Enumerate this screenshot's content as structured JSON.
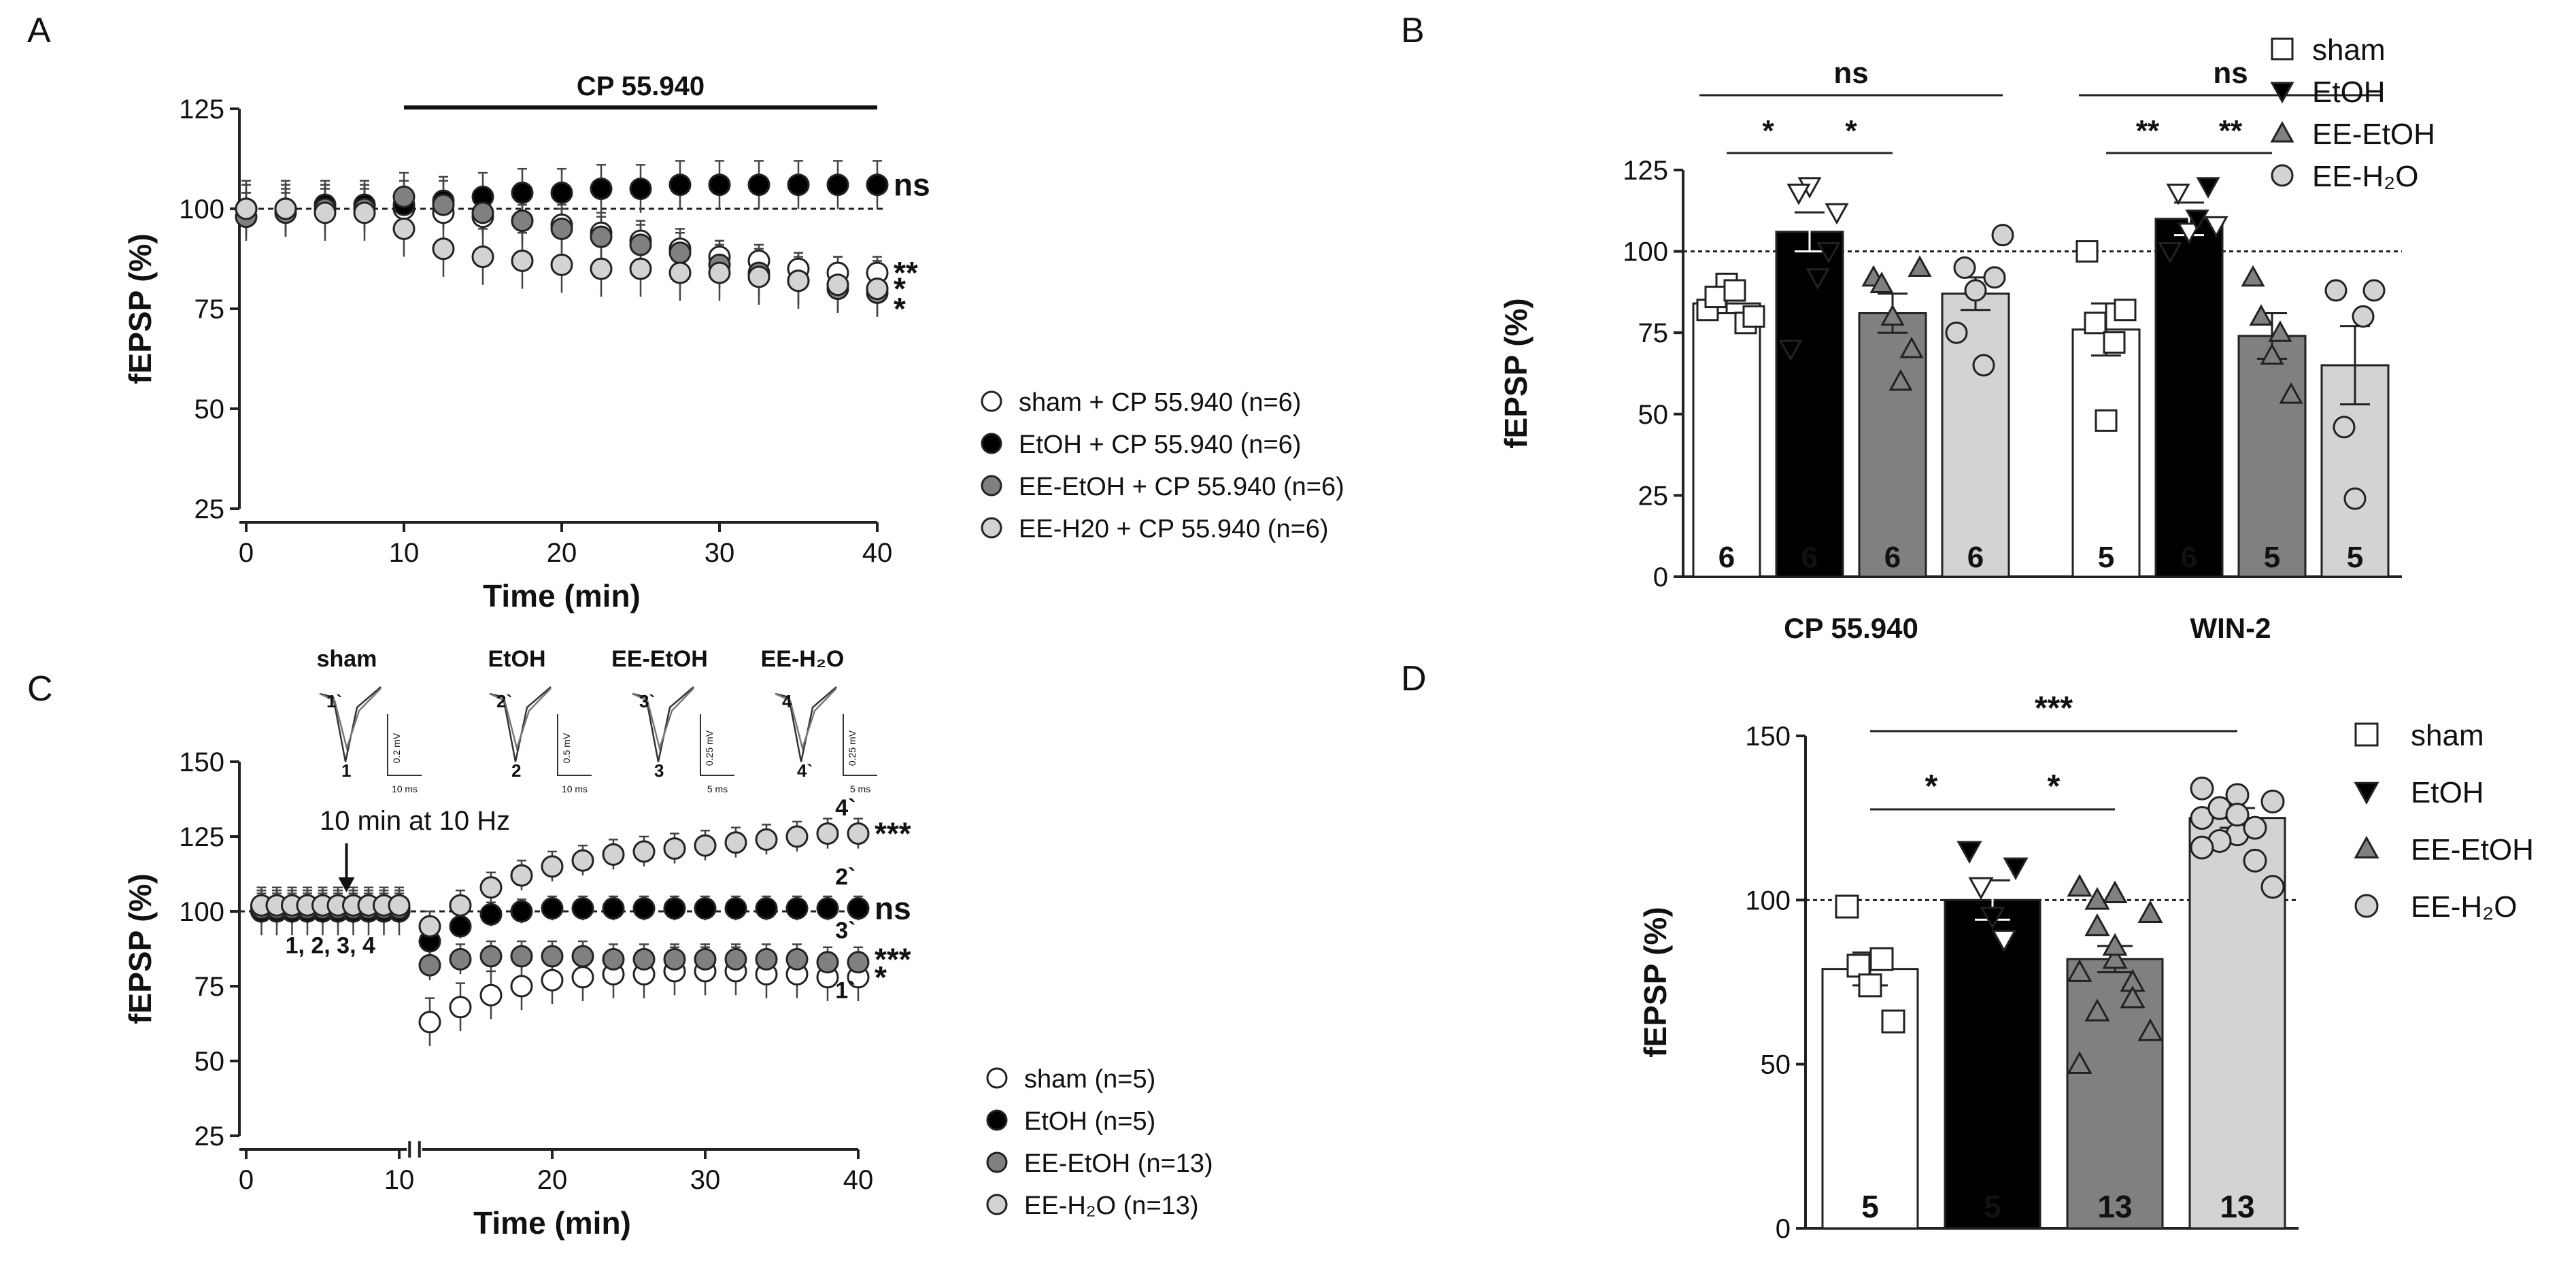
{
  "colors": {
    "sham": "#ffffff",
    "etoh": "#000000",
    "ee_etoh": "#808080",
    "ee_h2o": "#d3d3d3",
    "stroke": "#222222"
  },
  "chart_data": [
    {
      "panel": "A",
      "type": "line",
      "xlabel": "Time (min)",
      "ylabel": "fEPSP (%)",
      "xlim": [
        0,
        40
      ],
      "ylim": [
        25,
        125
      ],
      "xticks": [
        "0",
        "10",
        "20",
        "30",
        "40"
      ],
      "yticks": [
        "25",
        "50",
        "75",
        "100",
        "125"
      ],
      "drug_bar_label": "CP 55.940",
      "drug_bar_range": [
        10,
        40
      ],
      "series": [
        {
          "key": "sham",
          "name": "sham + CP 55.940 (n=6)",
          "x": [
            0,
            2.5,
            5,
            7.5,
            10,
            12.5,
            15,
            17.5,
            20,
            22.5,
            25,
            27.5,
            30,
            32.5,
            35,
            37.5,
            40
          ],
          "y": [
            100,
            100,
            101,
            101,
            100,
            99,
            98,
            97,
            96,
            94,
            92,
            90,
            88,
            87,
            85,
            84,
            84
          ],
          "err": 4
        },
        {
          "key": "etoh",
          "name": "EtOH + CP 55.940 (n=6)",
          "x": [
            0,
            2.5,
            5,
            7.5,
            10,
            12.5,
            15,
            17.5,
            20,
            22.5,
            25,
            27.5,
            30,
            32.5,
            35,
            37.5,
            40
          ],
          "y": [
            100,
            100,
            101,
            101,
            101,
            102,
            103,
            104,
            104,
            105,
            105,
            106,
            106,
            106,
            106,
            106,
            106
          ],
          "err": 6
        },
        {
          "key": "ee_etoh",
          "name": "EE-EtOH + CP 55.940 (n=6)",
          "x": [
            0,
            2.5,
            5,
            7.5,
            10,
            12.5,
            15,
            17.5,
            20,
            22.5,
            25,
            27.5,
            30,
            32.5,
            35,
            37.5,
            40
          ],
          "y": [
            98,
            99,
            100,
            100,
            103,
            101,
            99,
            97,
            95,
            93,
            91,
            89,
            86,
            84,
            82,
            80,
            79
          ],
          "err": 6
        },
        {
          "key": "ee_h2o",
          "name": "EE-H20 + CP 55.940 (n=6)",
          "x": [
            0,
            2.5,
            5,
            7.5,
            10,
            12.5,
            15,
            17.5,
            20,
            22.5,
            25,
            27.5,
            30,
            32.5,
            35,
            37.5,
            40
          ],
          "y": [
            100,
            100,
            99,
            99,
            95,
            90,
            88,
            87,
            86,
            85,
            85,
            84,
            84,
            83,
            82,
            81,
            80
          ],
          "err": 7
        }
      ],
      "significance": [
        {
          "label": "ns",
          "y": 106
        },
        {
          "label": "**",
          "y": 84
        },
        {
          "label": "*",
          "y": 80
        },
        {
          "label": "*",
          "y": 75
        }
      ]
    },
    {
      "panel": "B",
      "type": "bar",
      "ylabel": "fEPSP (%)",
      "ylim": [
        0,
        125
      ],
      "yticks": [
        "0",
        "25",
        "50",
        "75",
        "100",
        "125"
      ],
      "reference_line": 100,
      "groups": [
        "CP 55.940",
        "WIN-2"
      ],
      "series_names": [
        "sham",
        "EtOH",
        "EE-EtOH",
        "EE-H₂O"
      ],
      "values": [
        [
          84,
          106,
          81,
          87
        ],
        [
          76,
          110,
          74,
          65
        ]
      ],
      "sem": [
        [
          3,
          6,
          6,
          5
        ],
        [
          8,
          5,
          7,
          12
        ]
      ],
      "n": [
        [
          "6",
          "6",
          "6",
          "6"
        ],
        [
          "5",
          "6",
          "5",
          "5"
        ]
      ],
      "points": [
        [
          [
            82,
            90,
            78,
            86,
            88,
            80
          ],
          [
            70,
            120,
            100,
            118,
            92,
            112
          ],
          [
            92,
            80,
            70,
            90,
            60,
            95
          ],
          [
            75,
            88,
            92,
            95,
            65,
            105
          ]
        ],
        [
          [
            100,
            48,
            82,
            78,
            72
          ],
          [
            100,
            106,
            120,
            118,
            110,
            108
          ],
          [
            92,
            68,
            56,
            80,
            75
          ],
          [
            88,
            24,
            88,
            46,
            80
          ]
        ]
      ],
      "comparisons": [
        {
          "label": "ns",
          "from": [
            0,
            0
          ],
          "to": [
            0,
            3
          ],
          "level": 3
        },
        {
          "label": "*",
          "from": [
            0,
            0
          ],
          "to": [
            0,
            1
          ],
          "level": 2
        },
        {
          "label": "*",
          "from": [
            0,
            1
          ],
          "to": [
            0,
            2
          ],
          "level": 1
        },
        {
          "label": "ns",
          "from": [
            1,
            0
          ],
          "to": [
            1,
            3
          ],
          "level": 3
        },
        {
          "label": "**",
          "from": [
            1,
            0
          ],
          "to": [
            1,
            1
          ],
          "level": 2
        },
        {
          "label": "**",
          "from": [
            1,
            1
          ],
          "to": [
            1,
            2
          ],
          "level": 1
        }
      ]
    },
    {
      "panel": "C",
      "type": "line",
      "xlabel": "Time (min)",
      "ylabel": "fEPSP (%)",
      "xlim": [
        0,
        40
      ],
      "ylim": [
        25,
        150
      ],
      "xticks": [
        "0",
        "10",
        "20",
        "30",
        "40"
      ],
      "yticks": [
        "25",
        "50",
        "75",
        "100",
        "125",
        "150"
      ],
      "stimulus_label": "10 min at 10 Hz",
      "baseline_label": "1, 2, 3, 4",
      "inset_titles": [
        "sham",
        "EtOH",
        "EE-EtOH",
        "EE-H₂O"
      ],
      "inset_scale": [
        "0.2 mV",
        "0.5 mV",
        "0.25 mV",
        "0.25 mV"
      ],
      "inset_time": [
        "10 ms",
        "10 ms",
        "5 ms",
        "5 ms"
      ],
      "inset_markers": [
        [
          "1`",
          "1"
        ],
        [
          "2`",
          "2"
        ],
        [
          "3`",
          "3"
        ],
        [
          "4",
          "4`"
        ]
      ],
      "series": [
        {
          "key": "sham",
          "name": "sham (n=5)",
          "x": [
            1,
            2,
            3,
            4,
            5,
            6,
            7,
            8,
            9,
            10,
            12,
            14,
            16,
            18,
            20,
            22,
            24,
            26,
            28,
            30,
            32,
            34,
            36,
            38,
            40
          ],
          "y": [
            100,
            100,
            100,
            100,
            100,
            100,
            100,
            100,
            100,
            100,
            63,
            68,
            72,
            75,
            77,
            78,
            79,
            79,
            80,
            80,
            80,
            79,
            79,
            78,
            78
          ],
          "err": 8
        },
        {
          "key": "etoh",
          "name": "EtOH (n=5)",
          "x": [
            1,
            2,
            3,
            4,
            5,
            6,
            7,
            8,
            9,
            10,
            12,
            14,
            16,
            18,
            20,
            22,
            24,
            26,
            28,
            30,
            32,
            34,
            36,
            38,
            40
          ],
          "y": [
            100,
            100,
            100,
            100,
            100,
            100,
            100,
            100,
            100,
            100,
            90,
            95,
            99,
            100,
            101,
            101,
            101,
            101,
            101,
            101,
            101,
            101,
            101,
            101,
            101
          ],
          "err": 4
        },
        {
          "key": "ee_etoh",
          "name": "EE-EtOH (n=13)",
          "x": [
            1,
            2,
            3,
            4,
            5,
            6,
            7,
            8,
            9,
            10,
            12,
            14,
            16,
            18,
            20,
            22,
            24,
            26,
            28,
            30,
            32,
            34,
            36,
            38,
            40
          ],
          "y": [
            101,
            101,
            101,
            101,
            101,
            101,
            101,
            101,
            101,
            101,
            82,
            84,
            85,
            85,
            85,
            85,
            84,
            84,
            84,
            84,
            84,
            84,
            84,
            83,
            83
          ],
          "err": 5
        },
        {
          "key": "ee_h2o",
          "name": "EE-H₂O (n=13)",
          "x": [
            1,
            2,
            3,
            4,
            5,
            6,
            7,
            8,
            9,
            10,
            12,
            14,
            16,
            18,
            20,
            22,
            24,
            26,
            28,
            30,
            32,
            34,
            36,
            38,
            40
          ],
          "y": [
            102,
            102,
            102,
            102,
            102,
            102,
            102,
            102,
            102,
            102,
            95,
            102,
            108,
            112,
            115,
            117,
            119,
            120,
            121,
            122,
            123,
            124,
            125,
            126,
            126
          ],
          "err": 5
        }
      ],
      "trace_labels": [
        {
          "label": "4`",
          "y": 132
        },
        {
          "label": "2`",
          "y": 109
        },
        {
          "label": "3`",
          "y": 91
        },
        {
          "label": "1`",
          "y": 71
        }
      ],
      "significance": [
        {
          "label": "***",
          "y": 126
        },
        {
          "label": "ns",
          "y": 101
        },
        {
          "label": "***",
          "y": 84
        },
        {
          "label": "*",
          "y": 78
        }
      ]
    },
    {
      "panel": "D",
      "type": "bar",
      "ylabel": "fEPSP (%)",
      "ylim": [
        0,
        150
      ],
      "yticks": [
        "0",
        "50",
        "100",
        "150"
      ],
      "reference_line": 100,
      "series_names": [
        "sham",
        "EtOH",
        "EE-EtOH",
        "EE-H₂O"
      ],
      "values": [
        79,
        100,
        82,
        125
      ],
      "sem": [
        5,
        6,
        4,
        3
      ],
      "n": [
        "5",
        "5",
        "13",
        "13"
      ],
      "points": [
        [
          98,
          80,
          74,
          82,
          63
        ],
        [
          115,
          104,
          95,
          88,
          110
        ],
        [
          104,
          92,
          82,
          75,
          60,
          50,
          100,
          86,
          70,
          96,
          78,
          66,
          102
        ],
        [
          134,
          128,
          120,
          112,
          130,
          125,
          118,
          132,
          122,
          104,
          116,
          128,
          126
        ]
      ],
      "comparisons": [
        {
          "label": "***",
          "from": 0,
          "to": 3,
          "level": 2
        },
        {
          "label": "*",
          "from": 0,
          "to": 1,
          "level": 1
        },
        {
          "label": "*",
          "from": 1,
          "to": 2,
          "level": 1
        }
      ]
    }
  ],
  "legends": {
    "b_d": [
      "sham",
      "EtOH",
      "EE-EtOH",
      "EE-H₂O"
    ]
  },
  "panels": {
    "a": "A",
    "b": "B",
    "c": "C",
    "d": "D"
  }
}
